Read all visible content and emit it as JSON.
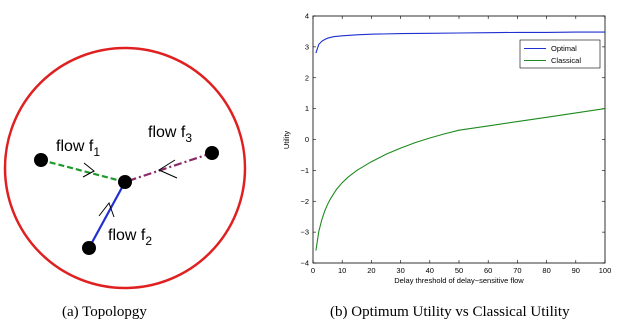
{
  "topology": {
    "colors": {
      "circle": "#e02020",
      "flow1": "#1f9a2a",
      "flow2": "#1f2fd0",
      "flow3": "#8a2a6a",
      "node": "#000000"
    },
    "flows": [
      {
        "label": "flow f",
        "sub": "1"
      },
      {
        "label": "flow f",
        "sub": "2"
      },
      {
        "label": "flow f",
        "sub": "3"
      }
    ]
  },
  "captions": {
    "a": "(a) Topolopgy",
    "b": "(b) Optimum Utility vs Classical Utility"
  },
  "chart_data": {
    "type": "line",
    "title": "",
    "xlabel": "Delay threshold of delay−sensitive flow",
    "ylabel": "Utility",
    "xlim": [
      0,
      100
    ],
    "ylim": [
      -4,
      4
    ],
    "xticks": [
      0,
      10,
      20,
      30,
      40,
      50,
      60,
      70,
      80,
      90,
      100
    ],
    "yticks": [
      -4,
      -3,
      -2,
      -1,
      0,
      1,
      2,
      3,
      4
    ],
    "grid": false,
    "legend": "top-right",
    "series": [
      {
        "name": "Optimal",
        "color": "#1f2fd0",
        "x": [
          1,
          2,
          3,
          4,
          5,
          7,
          10,
          15,
          20,
          30,
          40,
          50,
          60,
          70,
          80,
          90,
          100
        ],
        "y": [
          2.8,
          3.08,
          3.18,
          3.24,
          3.28,
          3.33,
          3.36,
          3.39,
          3.41,
          3.43,
          3.44,
          3.45,
          3.46,
          3.47,
          3.47,
          3.48,
          3.48
        ]
      },
      {
        "name": "Classical",
        "color": "#1f8a1f",
        "x": [
          1,
          2,
          3,
          4,
          5,
          6,
          8,
          10,
          12,
          15,
          20,
          25,
          30,
          35,
          40,
          45,
          50,
          55,
          60,
          70,
          80,
          90,
          100
        ],
        "y": [
          -3.6,
          -2.98,
          -2.6,
          -2.32,
          -2.1,
          -1.92,
          -1.62,
          -1.4,
          -1.22,
          -1.0,
          -0.72,
          -0.48,
          -0.28,
          -0.1,
          0.05,
          0.18,
          0.3,
          0.37,
          0.44,
          0.58,
          0.72,
          0.86,
          1.0
        ]
      }
    ]
  }
}
